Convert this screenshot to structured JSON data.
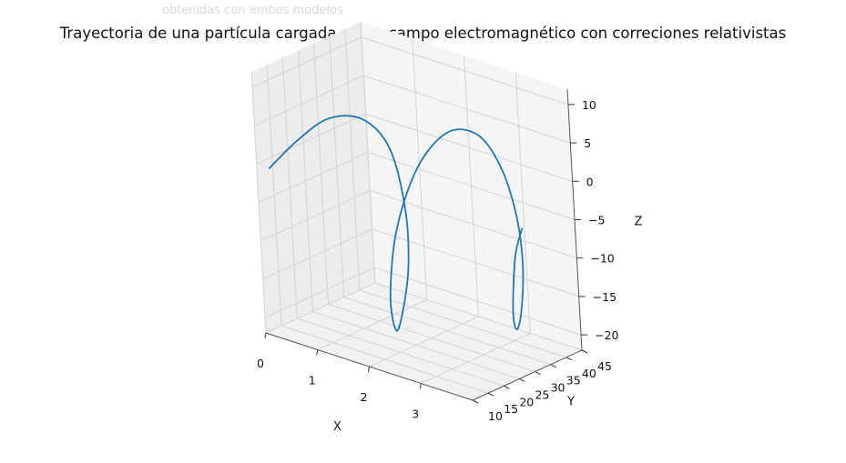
{
  "header_fragment": "obtenidas con ambos modelos",
  "chart_data": {
    "type": "line3d",
    "title": "Trayectoria de una partícula cargada en un campo electromagnético con correciones relativistas",
    "xlabel": "X",
    "ylabel": "Y",
    "zlabel": "Z",
    "xlim": [
      0,
      4
    ],
    "ylim": [
      10,
      45
    ],
    "zlim": [
      -22,
      12
    ],
    "xticks": [
      0,
      1,
      2,
      3
    ],
    "yticks": [
      10,
      15,
      20,
      25,
      30,
      35,
      40,
      45
    ],
    "zticks": [
      10,
      5,
      0,
      -5,
      -10,
      -15,
      -20
    ],
    "zticklabels": [
      "10",
      "5",
      "0",
      "−5",
      "−10",
      "−15",
      "−20"
    ],
    "grid": true,
    "line_color": "#1f77b4",
    "series": [
      {
        "points": [
          [
            0.25,
            10.0,
            0.0
          ],
          [
            0.75,
            11.5,
            4.5
          ],
          [
            1.25,
            13.6,
            8.0
          ],
          [
            1.75,
            16.2,
            8.5
          ],
          [
            2.1,
            18.6,
            5.0
          ],
          [
            2.2,
            20.8,
            -3.0
          ],
          [
            2.1,
            22.4,
            -11.0
          ],
          [
            1.9,
            23.0,
            -17.5
          ],
          [
            1.7,
            23.8,
            -20.5
          ],
          [
            1.55,
            25.0,
            -16.5
          ],
          [
            1.65,
            26.5,
            -8.0
          ],
          [
            2.0,
            28.6,
            0.5
          ],
          [
            2.45,
            31.4,
            5.5
          ],
          [
            2.85,
            34.4,
            5.5
          ],
          [
            3.1,
            37.0,
            1.5
          ],
          [
            3.2,
            39.5,
            -5.0
          ],
          [
            3.15,
            41.5,
            -12.0
          ],
          [
            3.0,
            42.7,
            -18.5
          ],
          [
            2.85,
            43.3,
            -21.5
          ],
          [
            2.75,
            44.0,
            -19.5
          ],
          [
            2.8,
            44.8,
            -12.5
          ],
          [
            2.95,
            45.0,
            -8.5
          ]
        ]
      }
    ]
  }
}
